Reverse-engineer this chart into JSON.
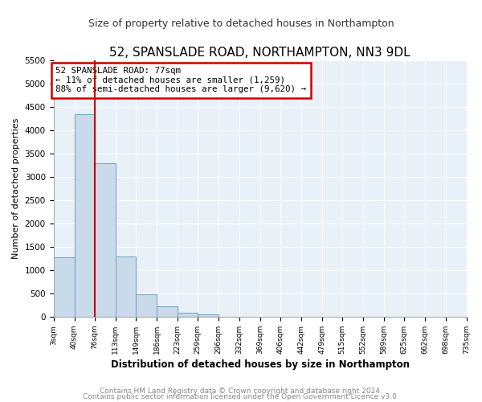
{
  "title": "52, SPANSLADE ROAD, NORTHAMPTON, NN3 9DL",
  "subtitle": "Size of property relative to detached houses in Northampton",
  "xlabel": "Distribution of detached houses by size in Northampton",
  "ylabel": "Number of detached properties",
  "bin_edges": [
    3,
    40,
    76,
    113,
    149,
    186,
    223,
    259,
    296,
    332,
    369,
    406,
    442,
    479,
    515,
    552,
    589,
    625,
    662,
    698,
    735
  ],
  "bar_heights": [
    1270,
    4340,
    3300,
    1290,
    480,
    225,
    85,
    50,
    0,
    0,
    0,
    0,
    0,
    0,
    0,
    0,
    0,
    0,
    0,
    0
  ],
  "bar_color": "#c9daea",
  "bar_edge_color": "#7aaac8",
  "property_value": 77,
  "redline_color": "#cc0000",
  "annotation_line1": "52 SPANSLADE ROAD: 77sqm",
  "annotation_line2": "← 11% of detached houses are smaller (1,259)",
  "annotation_line3": "88% of semi-detached houses are larger (9,620) →",
  "annotation_box_color": "#ffffff",
  "annotation_box_edge_color": "#cc0000",
  "ylim": [
    0,
    5500
  ],
  "yticks": [
    0,
    500,
    1000,
    1500,
    2000,
    2500,
    3000,
    3500,
    4000,
    4500,
    5000,
    5500
  ],
  "tick_labels": [
    "3sqm",
    "40sqm",
    "76sqm",
    "113sqm",
    "149sqm",
    "186sqm",
    "223sqm",
    "259sqm",
    "296sqm",
    "332sqm",
    "369sqm",
    "406sqm",
    "442sqm",
    "479sqm",
    "515sqm",
    "552sqm",
    "589sqm",
    "625sqm",
    "662sqm",
    "698sqm",
    "735sqm"
  ],
  "footer_line1": "Contains HM Land Registry data © Crown copyright and database right 2024.",
  "footer_line2": "Contains public sector information licensed under the Open Government Licence v3.0.",
  "bg_color": "#ffffff",
  "plot_bg_color": "#e8f0f8",
  "grid_color": "#ffffff",
  "title_fontsize": 11,
  "subtitle_fontsize": 9
}
